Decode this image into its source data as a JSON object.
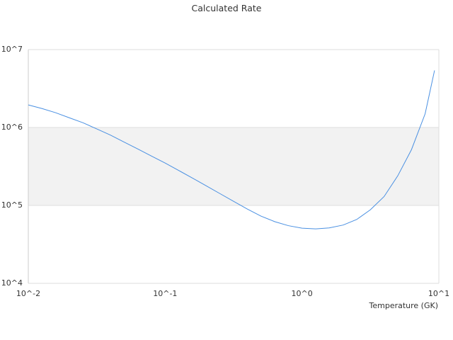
{
  "chart_data": {
    "type": "line",
    "title": "Calculated Rate",
    "xlabel": "Temperature (GK)",
    "ylabel": "",
    "x_scale": "log",
    "y_scale": "log",
    "xlim": [
      0.01,
      10
    ],
    "ylim": [
      10000,
      10000000
    ],
    "x_ticks": [
      {
        "value": 0.01,
        "label": "10^-2"
      },
      {
        "value": 0.1,
        "label": "10^-1"
      },
      {
        "value": 1,
        "label": "10^0"
      },
      {
        "value": 10,
        "label": "10^1"
      }
    ],
    "y_ticks": [
      {
        "value": 10000,
        "label": "10^4"
      },
      {
        "value": 100000,
        "label": "10^5"
      },
      {
        "value": 1000000,
        "label": "10^6"
      },
      {
        "value": 10000000,
        "label": "10^7"
      }
    ],
    "shaded_band": {
      "y_from": 100000,
      "y_to": 1000000,
      "color": "#f2f2f2"
    },
    "grid": true,
    "legend": "none",
    "colors": {
      "line": "#4a90e2",
      "grid": "#dddddd",
      "band": "#f2f2f2",
      "axis": "#cccccc"
    },
    "series": [
      {
        "x": [
          0.01,
          0.0126,
          0.0158,
          0.02,
          0.0251,
          0.0316,
          0.0398,
          0.0501,
          0.0631,
          0.0794,
          0.1,
          0.126,
          0.158,
          0.2,
          0.251,
          0.316,
          0.398,
          0.501,
          0.631,
          0.794,
          1.0,
          1.26,
          1.58,
          2.0,
          2.51,
          3.16,
          3.98,
          5.01,
          6.31,
          7.94,
          9.3
        ],
        "y": [
          1950000,
          1750000,
          1550000,
          1330000,
          1150000,
          960000,
          800000,
          650000,
          530000,
          430000,
          350000,
          280000,
          225000,
          178000,
          142000,
          113000,
          90000,
          73000,
          62000,
          55000,
          51000,
          50000,
          51500,
          56000,
          66000,
          88000,
          130000,
          240000,
          520000,
          1500000,
          5400000
        ]
      }
    ]
  }
}
